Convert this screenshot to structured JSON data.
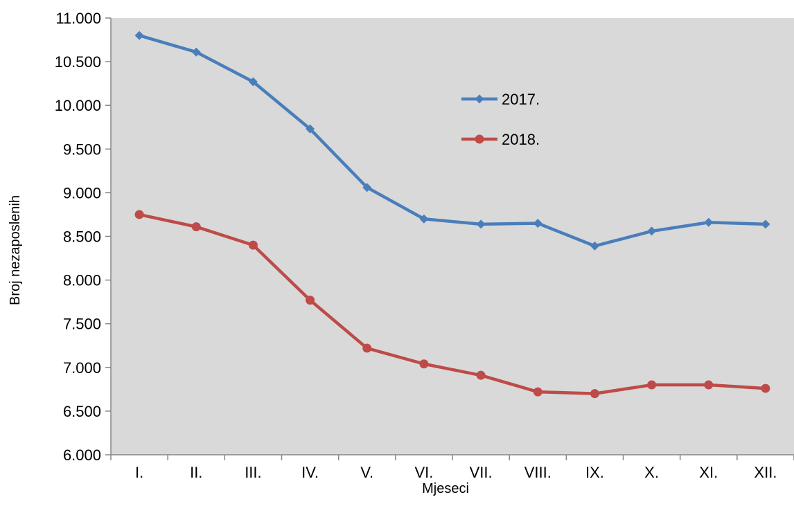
{
  "chart_data": {
    "type": "line",
    "title": "",
    "xlabel": "Mjeseci",
    "ylabel": "Broj nezaposlenih",
    "categories": [
      "I.",
      "II.",
      "III.",
      "IV.",
      "V.",
      "VI.",
      "VII.",
      "VIII.",
      "IX.",
      "X.",
      "XI.",
      "XII."
    ],
    "ylim": [
      6000,
      11000
    ],
    "y_ticks": [
      6000,
      6500,
      7000,
      7500,
      8000,
      8500,
      9000,
      9500,
      10000,
      10500,
      11000
    ],
    "y_tick_labels": [
      "6.000",
      "6.500",
      "7.000",
      "7.500",
      "8.000",
      "8.500",
      "9.000",
      "9.500",
      "10.000",
      "10.500",
      "11.000"
    ],
    "grid": false,
    "plot_background": "#d9d9d9",
    "legend_position": "inside upper center",
    "series": [
      {
        "name": "2017.",
        "color": "#4a7ebb",
        "marker": "diamond",
        "values": [
          10800,
          10610,
          10270,
          9730,
          9060,
          8700,
          8640,
          8650,
          8390,
          8560,
          8660,
          8640
        ]
      },
      {
        "name": "2018.",
        "color": "#be4b48",
        "marker": "circle",
        "values": [
          8750,
          8610,
          8400,
          7770,
          7220,
          7040,
          6910,
          6720,
          6700,
          6800,
          6800,
          6760
        ]
      }
    ]
  }
}
